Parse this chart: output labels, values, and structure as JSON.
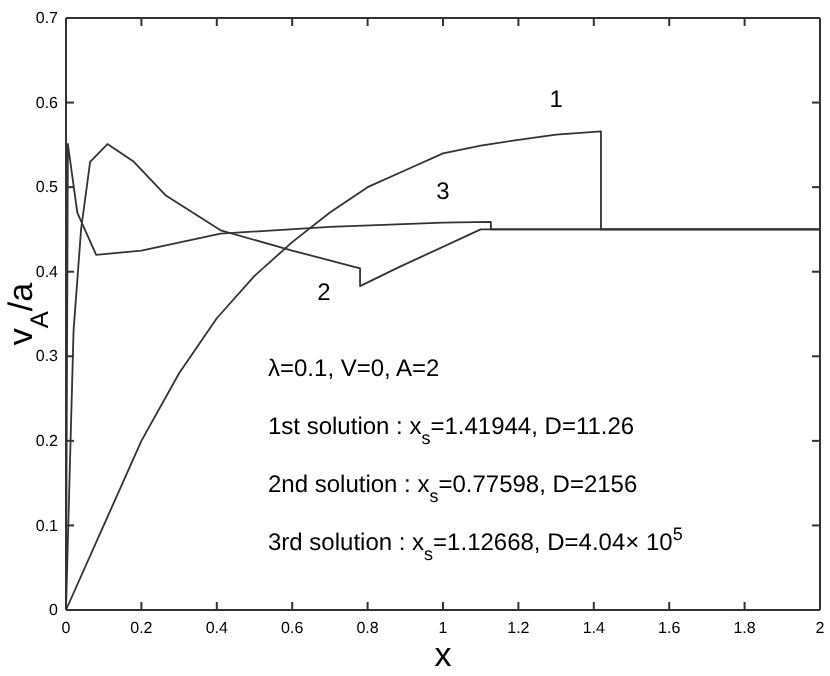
{
  "chart_data": {
    "type": "line",
    "xlabel": "x",
    "ylabel": "v$_{A}$/a",
    "xlim": [
      0,
      2
    ],
    "ylim": [
      0,
      0.7
    ],
    "xticks": [
      0,
      0.2,
      0.4,
      0.6,
      0.8,
      1,
      1.2,
      1.4,
      1.6,
      1.8,
      2
    ],
    "yticks": [
      0,
      0.1,
      0.2,
      0.3,
      0.4,
      0.5,
      0.6,
      0.7
    ],
    "grid": false,
    "marker": "none",
    "line_style": "solid",
    "series": [
      {
        "name": "1",
        "color": "#333333",
        "x": [
          0,
          0.1,
          0.2,
          0.3,
          0.4,
          0.5,
          0.6,
          0.7,
          0.8,
          0.9,
          1.0,
          1.1,
          1.2,
          1.3,
          1.419,
          1.419,
          2
        ],
        "values": [
          0,
          0.1,
          0.2,
          0.28,
          0.345,
          0.395,
          0.435,
          0.47,
          0.5,
          0.52,
          0.54,
          0.549,
          0.556,
          0.562,
          0.566,
          0.45,
          0.45
        ]
      },
      {
        "name": "2",
        "color": "#333333",
        "x": [
          0,
          0.02,
          0.04,
          0.064,
          0.11,
          0.18,
          0.265,
          0.41,
          0.6,
          0.78,
          0.78,
          0.886,
          1.1,
          2
        ],
        "values": [
          0,
          0.33,
          0.45,
          0.53,
          0.551,
          0.53,
          0.49,
          0.449,
          0.425,
          0.404,
          0.383,
          0.406,
          0.45,
          0.45
        ]
      },
      {
        "name": "3",
        "color": "#333333",
        "x": [
          0,
          0.005,
          0.03,
          0.08,
          0.2,
          0.41,
          0.7,
          1.0,
          1.127,
          1.127,
          2
        ],
        "values": [
          0,
          0.551,
          0.47,
          0.42,
          0.425,
          0.445,
          0.453,
          0.458,
          0.459,
          0.45,
          0.45
        ]
      }
    ],
    "annotations": [
      "λ=0.1, V=0, A=2",
      "1st solution : x$_{s}$=1.41944, D=11.26",
      "2nd solution : x$_{s}$=0.77598, D=2156",
      "3rd solution : x$_{s}$=1.12668, D=4.04× 10$^{5}$"
    ]
  }
}
